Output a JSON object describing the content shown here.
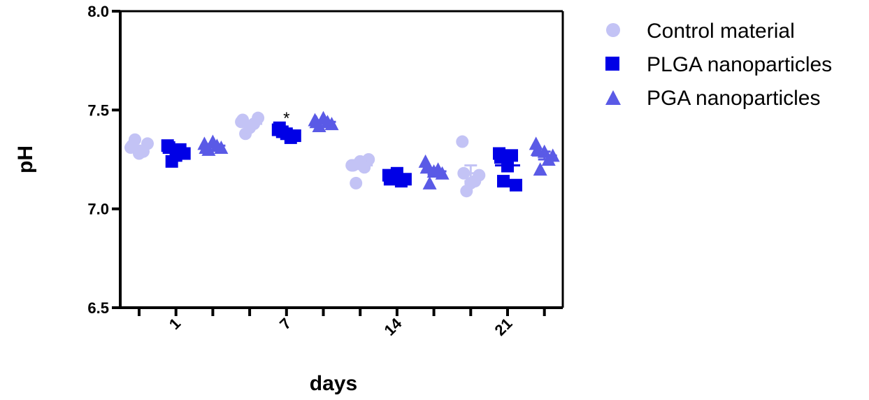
{
  "chart_data": {
    "type": "scatter",
    "xlabel": "days",
    "ylabel": "pH",
    "ylim": [
      6.5,
      8.0
    ],
    "yticks": [
      "6.5",
      "7.0",
      "7.5",
      "8.0"
    ],
    "categories": [
      "1",
      "7",
      "14",
      "21"
    ],
    "grid": false,
    "legend_position": "top-right",
    "series": [
      {
        "name": "Control material",
        "marker": "circle",
        "color": "#c3c3f5",
        "points": [
          [
            7.31,
            7.33,
            7.35,
            7.29,
            7.28,
            7.32
          ],
          [
            7.44,
            7.46,
            7.38,
            7.43,
            7.41,
            7.45
          ],
          [
            7.22,
            7.25,
            7.13,
            7.21,
            7.24,
            7.22
          ],
          [
            7.34,
            7.17,
            7.09,
            7.14,
            7.13,
            7.18
          ]
        ],
        "mean": [
          7.31,
          7.43,
          7.22,
          7.18
        ],
        "sem": [
          0.01,
          0.01,
          0.018,
          0.04
        ]
      },
      {
        "name": "PLGA nanoparticles",
        "marker": "square",
        "color": "#0000e6",
        "points": [
          [
            7.32,
            7.28,
            7.24,
            7.3,
            7.27,
            7.31
          ],
          [
            7.4,
            7.37,
            7.39,
            7.36,
            7.38,
            7.41
          ],
          [
            7.17,
            7.15,
            7.16,
            7.14,
            7.18,
            7.15
          ],
          [
            7.28,
            7.12,
            7.14,
            7.27,
            7.22,
            7.26
          ]
        ],
        "mean": [
          7.29,
          7.39,
          7.16,
          7.22
        ],
        "sem": [
          0.015,
          0.008,
          0.006,
          0.03
        ]
      },
      {
        "name": "PGA nanoparticles",
        "marker": "triangle",
        "color": "#5a5ae6",
        "points": [
          [
            7.33,
            7.31,
            7.3,
            7.32,
            7.34,
            7.31
          ],
          [
            7.45,
            7.43,
            7.42,
            7.44,
            7.46,
            7.44
          ],
          [
            7.24,
            7.18,
            7.13,
            7.2,
            7.19,
            7.21
          ],
          [
            7.33,
            7.27,
            7.2,
            7.25,
            7.29,
            7.3
          ]
        ],
        "mean": [
          7.32,
          7.44,
          7.19,
          7.27
        ],
        "sem": [
          0.008,
          0.008,
          0.016,
          0.02
        ]
      }
    ],
    "annotations": [
      {
        "text": "*",
        "category": "7",
        "series": "PLGA nanoparticles"
      }
    ]
  }
}
